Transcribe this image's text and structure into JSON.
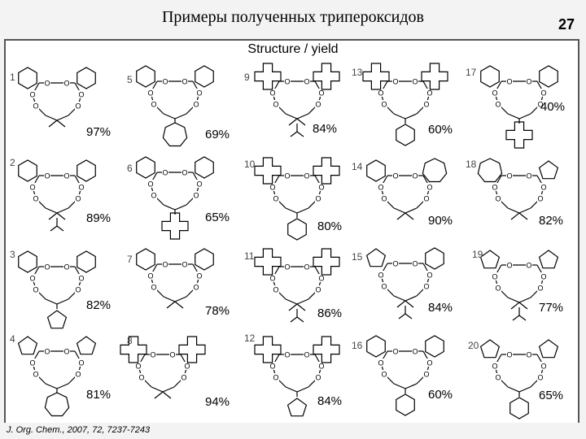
{
  "title": "Примеры полученных трипероксидов",
  "page_number": "27",
  "subtitle": "Structure / yield",
  "reference": "J. Org. Chem., 2007, 72, 7237-7243",
  "compounds": [
    {
      "label": "1",
      "yield": "97%"
    },
    {
      "label": "2",
      "yield": "89%"
    },
    {
      "label": "3",
      "yield": "82%"
    },
    {
      "label": "4",
      "yield": "81%"
    },
    {
      "label": "5",
      "yield": "69%"
    },
    {
      "label": "6",
      "yield": "65%"
    },
    {
      "label": "7",
      "yield": "78%"
    },
    {
      "label": "8",
      "yield": "94%"
    },
    {
      "label": "9",
      "yield": "84%"
    },
    {
      "label": "10",
      "yield": "80%"
    },
    {
      "label": "11",
      "yield": "86%"
    },
    {
      "label": "12",
      "yield": "84%"
    },
    {
      "label": "13",
      "yield": "60%"
    },
    {
      "label": "14",
      "yield": "90%"
    },
    {
      "label": "15",
      "yield": "84%"
    },
    {
      "label": "16",
      "yield": "60%"
    },
    {
      "label": "17",
      "yield": "40%"
    },
    {
      "label": "18",
      "yield": "82%"
    },
    {
      "label": "19",
      "yield": "77%"
    },
    {
      "label": "20",
      "yield": "65%"
    }
  ],
  "atom_symbol": "O"
}
